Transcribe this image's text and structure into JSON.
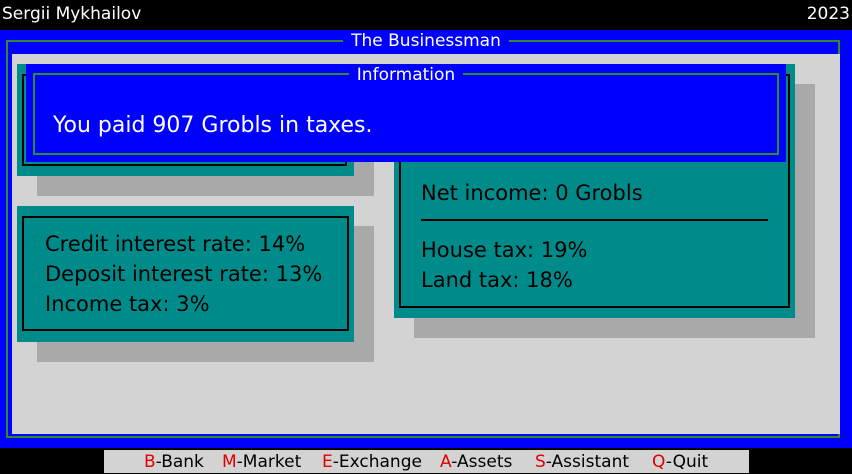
{
  "header": {
    "user_name": "Sergii Mykhailov",
    "year": "2023"
  },
  "main_window": {
    "title": "The Businessman"
  },
  "left_panel": {
    "lines": [
      "Credit interest rate: 14%",
      "Deposit interest rate: 13%",
      "Income tax: 3%"
    ]
  },
  "right_panel": {
    "net_income": "Net income: 0 Grobls",
    "house_tax": "House tax: 19%",
    "land_tax": "Land tax: 18%"
  },
  "info_dialog": {
    "title": "Information",
    "message": "You paid 907 Grobls in taxes."
  },
  "menu": {
    "items": [
      {
        "key": "B",
        "label": "-Bank"
      },
      {
        "key": "M",
        "label": "-Market"
      },
      {
        "key": "E",
        "label": "-Exchange"
      },
      {
        "key": "A",
        "label": "-Assets"
      },
      {
        "key": "S",
        "label": "-Assistant"
      },
      {
        "key": "Q",
        "label": "-Quit"
      }
    ]
  },
  "colors": {
    "window_blue": "#0000ff",
    "panel_teal": "#008b8b",
    "desktop_gray": "#d3d3d3",
    "shadow_gray": "#a9a9a9",
    "frame_green": "#2e8b2e",
    "hotkey_red": "#e00000"
  }
}
